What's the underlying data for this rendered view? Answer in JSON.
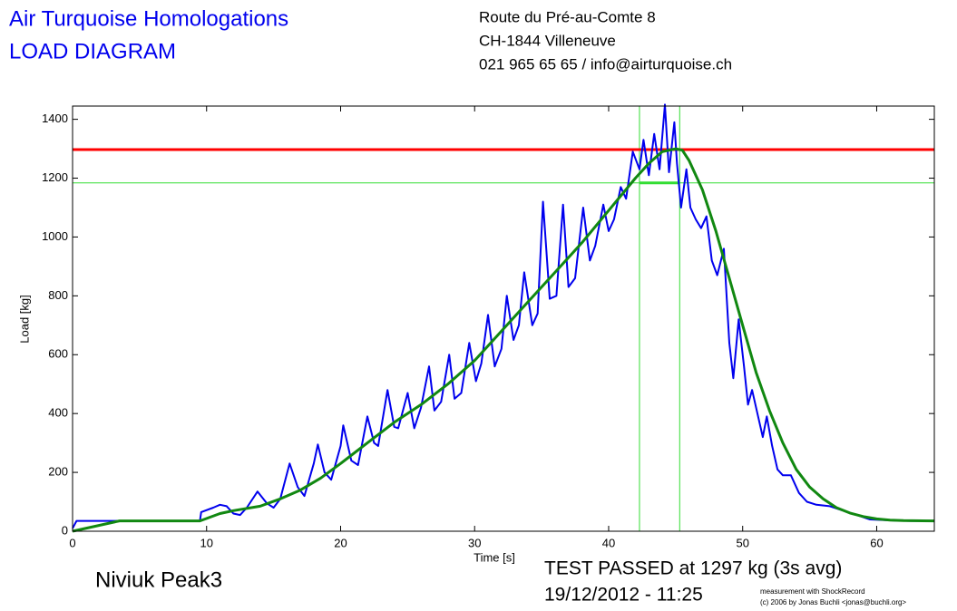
{
  "header": {
    "title": [
      "Air Turquoise Homologations",
      "LOAD DIAGRAM"
    ],
    "address": [
      "Route du Pré-au-Comte 8",
      "CH-1844 Villeneuve",
      "021 965 65 65 / info@airturquoise.ch"
    ]
  },
  "footer": {
    "glider": "Niviuk Peak3",
    "result": "TEST PASSED at 1297 kg (3s avg)",
    "date": "19/12/2012 - 11:25",
    "credit": [
      "measurement with ShockRecord",
      "(c) 2006 by Jonas Buchli <jonas@buchli.org>"
    ]
  },
  "chart_data": {
    "type": "line",
    "x_label": "Time [s]",
    "y_label": "Load [kg]",
    "xlim": [
      0,
      64.3
    ],
    "ylim": [
      0,
      1445
    ],
    "xticks": [
      0,
      10,
      20,
      30,
      40,
      50,
      60
    ],
    "yticks": [
      0,
      200,
      400,
      600,
      800,
      1000,
      1200,
      1400
    ],
    "hlines": [
      {
        "value": 1297,
        "color": "#ff0000"
      },
      {
        "value": 1184,
        "color": "#33dd33"
      }
    ],
    "vlines": [
      42.3,
      45.3
    ],
    "vline_color": "#33dd33",
    "series": [
      {
        "color": "#0000ee",
        "x": [
          0,
          0.3,
          3.5,
          9.5,
          9.6,
          10.5,
          11,
          11.5,
          12,
          12.5,
          13,
          13.8,
          14.5,
          15,
          15.5,
          16.2,
          16.8,
          17.3,
          18,
          18.3,
          18.8,
          19.3,
          20,
          20.2,
          20.8,
          21.3,
          22,
          22.5,
          22.8,
          23.5,
          24,
          24.3,
          25,
          25.5,
          26,
          26.6,
          27,
          27.5,
          28.1,
          28.5,
          29,
          29.6,
          30.1,
          30.5,
          31,
          31.5,
          32,
          32.4,
          32.9,
          33.3,
          33.7,
          34.3,
          34.7,
          35.1,
          35.6,
          36.1,
          36.6,
          37,
          37.5,
          38.1,
          38.6,
          39,
          39.6,
          40,
          40.4,
          40.9,
          41.3,
          41.8,
          42.3,
          42.6,
          43,
          43.4,
          43.8,
          44.2,
          44.5,
          44.9,
          45.1,
          45.4,
          45.8,
          46.1,
          46.5,
          46.9,
          47.3,
          47.7,
          48.1,
          48.6,
          49,
          49.3,
          49.7,
          50.1,
          50.4,
          50.7,
          51.1,
          51.5,
          51.8,
          52.2,
          52.6,
          53,
          53.6,
          54.2,
          54.8,
          55.5,
          56.5,
          57.5,
          58.5,
          59.5,
          61,
          62.5,
          64.3
        ],
        "values": [
          10,
          35,
          35,
          35,
          65,
          80,
          90,
          85,
          60,
          55,
          80,
          135,
          95,
          80,
          110,
          230,
          150,
          120,
          230,
          295,
          200,
          175,
          290,
          360,
          240,
          225,
          390,
          300,
          290,
          480,
          355,
          350,
          470,
          350,
          420,
          560,
          410,
          440,
          600,
          450,
          470,
          640,
          510,
          570,
          735,
          560,
          620,
          800,
          650,
          700,
          880,
          700,
          740,
          1120,
          790,
          800,
          1110,
          830,
          860,
          1100,
          920,
          970,
          1110,
          1020,
          1060,
          1170,
          1130,
          1290,
          1230,
          1330,
          1210,
          1350,
          1230,
          1450,
          1220,
          1390,
          1250,
          1100,
          1230,
          1100,
          1060,
          1030,
          1070,
          920,
          870,
          960,
          640,
          520,
          720,
          560,
          430,
          480,
          400,
          320,
          390,
          290,
          210,
          190,
          190,
          130,
          100,
          90,
          85,
          70,
          55,
          40,
          37,
          35,
          35
        ]
      },
      {
        "color": "#118811",
        "x": [
          0,
          3.5,
          9.5,
          11,
          12,
          14,
          15.5,
          17,
          18.5,
          20,
          22,
          24,
          26,
          28,
          30,
          32,
          34,
          36,
          38,
          40,
          42,
          43,
          44,
          45,
          45.5,
          46,
          47,
          48,
          49,
          50,
          51,
          52,
          53,
          54,
          55,
          56,
          57,
          58,
          59,
          60,
          61,
          62,
          64.3
        ],
        "values": [
          0,
          35,
          35,
          60,
          70,
          85,
          110,
          140,
          180,
          230,
          300,
          370,
          430,
          500,
          580,
          680,
          780,
          880,
          980,
          1090,
          1200,
          1250,
          1290,
          1300,
          1295,
          1260,
          1160,
          1020,
          860,
          700,
          540,
          410,
          300,
          210,
          150,
          110,
          80,
          62,
          50,
          42,
          38,
          36,
          35
        ]
      }
    ]
  }
}
